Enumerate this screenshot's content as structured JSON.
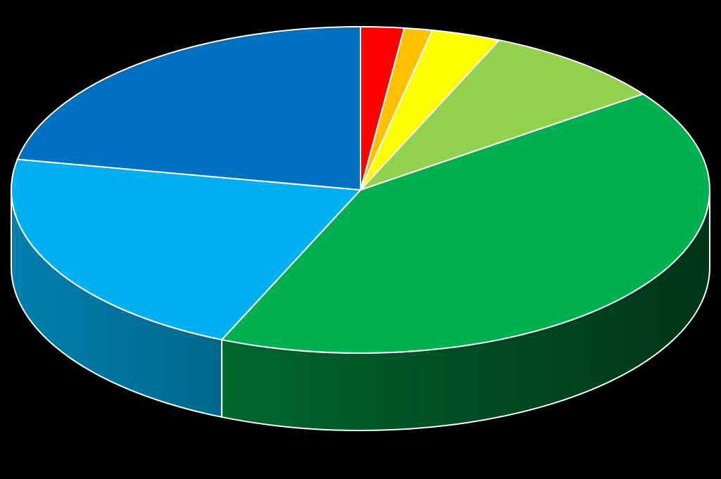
{
  "chart_data": {
    "type": "pie",
    "style": "3d",
    "title": "",
    "legend": "none",
    "data_labels": "none",
    "slices": [
      {
        "value": 2.0,
        "color": "#FF0000"
      },
      {
        "value": 1.3,
        "color": "#FFC000"
      },
      {
        "value": 3.2,
        "color": "#FFFF00"
      },
      {
        "value": 8.5,
        "color": "#92D050"
      },
      {
        "value": 41.5,
        "color": "#00B050"
      },
      {
        "value": 21.5,
        "color": "#00B0F0"
      },
      {
        "value": 22.0,
        "color": "#0070C0"
      }
    ]
  }
}
